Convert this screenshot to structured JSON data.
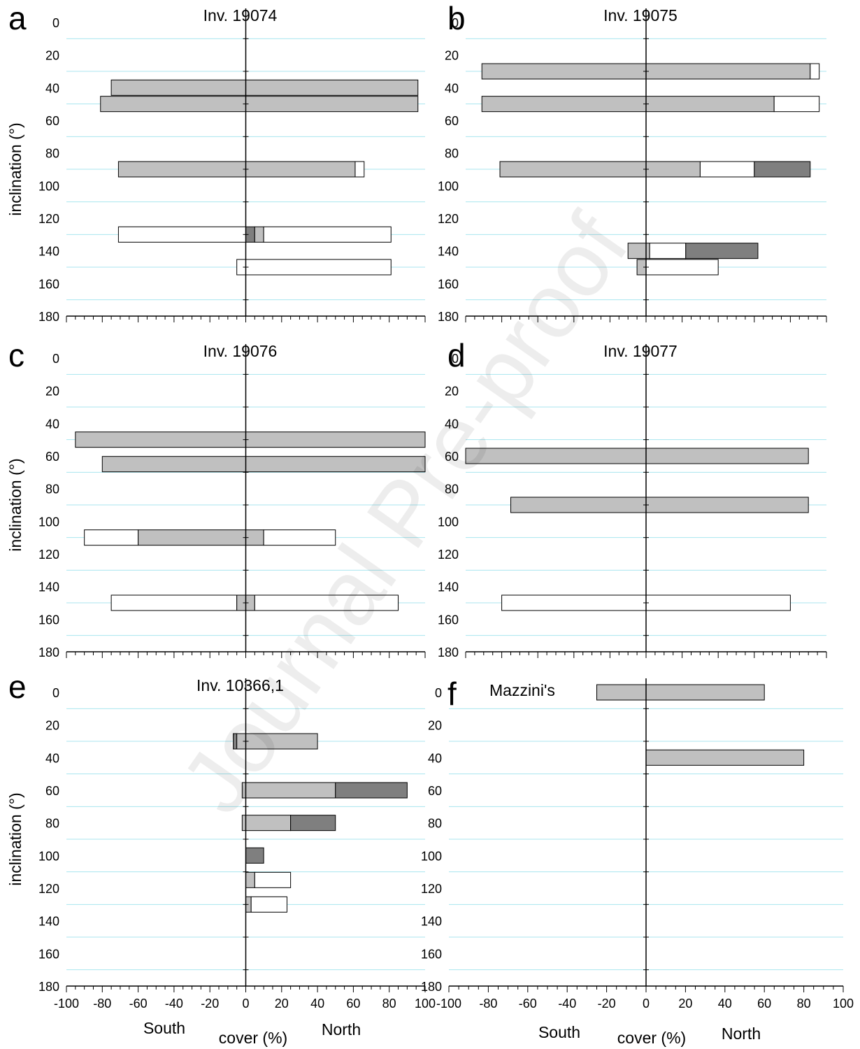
{
  "colors": {
    "light": "#c0c0c0",
    "white": "#ffffff",
    "dark": "#7f7f7f",
    "grid": "#a8e6ef"
  },
  "watermark": "Journal Pre-proof",
  "labels": {
    "x_ticks": [
      "-100",
      "-80",
      "-60",
      "-40",
      "-20",
      "0",
      "20",
      "40",
      "60",
      "80",
      "100"
    ],
    "y_ticks": [
      "0",
      "20",
      "40",
      "60",
      "80",
      "100",
      "120",
      "140",
      "160",
      "180"
    ],
    "ylabel": "inclination (°)",
    "south": "South",
    "north": "North",
    "xlabel": "cover (%)"
  },
  "chart_data": [
    {
      "type": "bar",
      "panel": "a",
      "title": "Inv. 19074",
      "xlim": [
        -100,
        100
      ],
      "ylim": [
        0,
        180
      ],
      "xlabel": "",
      "ylabel": "inclination (°)",
      "bars": [
        {
          "inclination": 40,
          "segments": [
            {
              "from": -75,
              "to": 96,
              "fill": "light"
            }
          ]
        },
        {
          "inclination": 50,
          "segments": [
            {
              "from": -81,
              "to": 96,
              "fill": "light"
            }
          ]
        },
        {
          "inclination": 90,
          "segments": [
            {
              "from": -71,
              "to": 61,
              "fill": "light"
            },
            {
              "from": 61,
              "to": 66,
              "fill": "white"
            }
          ]
        },
        {
          "inclination": 130,
          "segments": [
            {
              "from": -71,
              "to": 0,
              "fill": "white"
            },
            {
              "from": 0,
              "to": 5,
              "fill": "dark"
            },
            {
              "from": 5,
              "to": 10,
              "fill": "light"
            },
            {
              "from": 10,
              "to": 81,
              "fill": "white"
            }
          ]
        },
        {
          "inclination": 150,
          "segments": [
            {
              "from": -5,
              "to": 81,
              "fill": "white"
            }
          ]
        }
      ]
    },
    {
      "type": "bar",
      "panel": "b",
      "title": "Inv. 19075",
      "xlim": [
        -100,
        100
      ],
      "ylim": [
        0,
        180
      ],
      "xlabel": "",
      "ylabel": "",
      "bars": [
        {
          "inclination": 30,
          "segments": [
            {
              "from": -91,
              "to": 91,
              "fill": "light"
            },
            {
              "from": 91,
              "to": 96,
              "fill": "white"
            }
          ]
        },
        {
          "inclination": 50,
          "segments": [
            {
              "from": -91,
              "to": 71,
              "fill": "light"
            },
            {
              "from": 71,
              "to": 96,
              "fill": "white"
            }
          ]
        },
        {
          "inclination": 90,
          "segments": [
            {
              "from": -81,
              "to": 30,
              "fill": "light"
            },
            {
              "from": 30,
              "to": 60,
              "fill": "white"
            },
            {
              "from": 60,
              "to": 91,
              "fill": "dark"
            }
          ]
        },
        {
          "inclination": 140,
          "segments": [
            {
              "from": -10,
              "to": 2,
              "fill": "light"
            },
            {
              "from": 2,
              "to": 22,
              "fill": "white"
            },
            {
              "from": 22,
              "to": 62,
              "fill": "dark"
            }
          ]
        },
        {
          "inclination": 150,
          "segments": [
            {
              "from": -5,
              "to": 0,
              "fill": "light"
            },
            {
              "from": 0,
              "to": 40,
              "fill": "white"
            }
          ]
        }
      ]
    },
    {
      "type": "bar",
      "panel": "c",
      "title": "Inv. 19076",
      "xlim": [
        -100,
        100
      ],
      "ylim": [
        0,
        180
      ],
      "xlabel": "",
      "ylabel": "inclination (°)",
      "bars": [
        {
          "inclination": 50,
          "segments": [
            {
              "from": -95,
              "to": 100,
              "fill": "light"
            }
          ]
        },
        {
          "inclination": 65,
          "segments": [
            {
              "from": -80,
              "to": 100,
              "fill": "light"
            }
          ]
        },
        {
          "inclination": 110,
          "segments": [
            {
              "from": -90,
              "to": -60,
              "fill": "white"
            },
            {
              "from": -60,
              "to": 10,
              "fill": "light"
            },
            {
              "from": 10,
              "to": 50,
              "fill": "white"
            }
          ]
        },
        {
          "inclination": 150,
          "segments": [
            {
              "from": -75,
              "to": -5,
              "fill": "white"
            },
            {
              "from": -5,
              "to": 5,
              "fill": "light"
            },
            {
              "from": 5,
              "to": 85,
              "fill": "white"
            }
          ]
        }
      ]
    },
    {
      "type": "bar",
      "panel": "d",
      "title": "Inv. 19077",
      "xlim": [
        -100,
        100
      ],
      "ylim": [
        0,
        180
      ],
      "xlabel": "",
      "ylabel": "",
      "bars": [
        {
          "inclination": 60,
          "segments": [
            {
              "from": -100,
              "to": 90,
              "fill": "light"
            }
          ]
        },
        {
          "inclination": 90,
          "segments": [
            {
              "from": -75,
              "to": 90,
              "fill": "light"
            }
          ]
        },
        {
          "inclination": 150,
          "segments": [
            {
              "from": -80,
              "to": 0,
              "fill": "white"
            },
            {
              "from": 0,
              "to": 80,
              "fill": "white"
            }
          ]
        }
      ]
    },
    {
      "type": "bar",
      "panel": "e",
      "title": "Inv. 10366,1",
      "xlim": [
        -100,
        100
      ],
      "ylim": [
        0,
        180
      ],
      "xlabel": "cover (%)",
      "ylabel": "inclination (°)",
      "bars": [
        {
          "inclination": 30,
          "segments": [
            {
              "from": -7,
              "to": -5,
              "fill": "dark"
            },
            {
              "from": -5,
              "to": 40,
              "fill": "light"
            }
          ]
        },
        {
          "inclination": 60,
          "segments": [
            {
              "from": -2,
              "to": 50,
              "fill": "light"
            },
            {
              "from": 50,
              "to": 90,
              "fill": "dark"
            }
          ]
        },
        {
          "inclination": 80,
          "segments": [
            {
              "from": -2,
              "to": 25,
              "fill": "light"
            },
            {
              "from": 25,
              "to": 50,
              "fill": "dark"
            }
          ]
        },
        {
          "inclination": 100,
          "segments": [
            {
              "from": 0,
              "to": 10,
              "fill": "dark"
            }
          ]
        },
        {
          "inclination": 115,
          "segments": [
            {
              "from": 0,
              "to": 5,
              "fill": "light"
            },
            {
              "from": 5,
              "to": 25,
              "fill": "white"
            }
          ]
        },
        {
          "inclination": 130,
          "segments": [
            {
              "from": 0,
              "to": 3,
              "fill": "light"
            },
            {
              "from": 3,
              "to": 23,
              "fill": "white"
            }
          ]
        }
      ]
    },
    {
      "type": "bar",
      "panel": "f",
      "title": "Mazzini's",
      "xlim": [
        -100,
        100
      ],
      "ylim": [
        0,
        180
      ],
      "xlabel": "cover (%)",
      "ylabel": "",
      "bars": [
        {
          "inclination": 0,
          "segments": [
            {
              "from": -25,
              "to": 60,
              "fill": "light"
            }
          ]
        },
        {
          "inclination": 40,
          "segments": [
            {
              "from": 0,
              "to": 80,
              "fill": "light"
            }
          ]
        }
      ]
    }
  ]
}
